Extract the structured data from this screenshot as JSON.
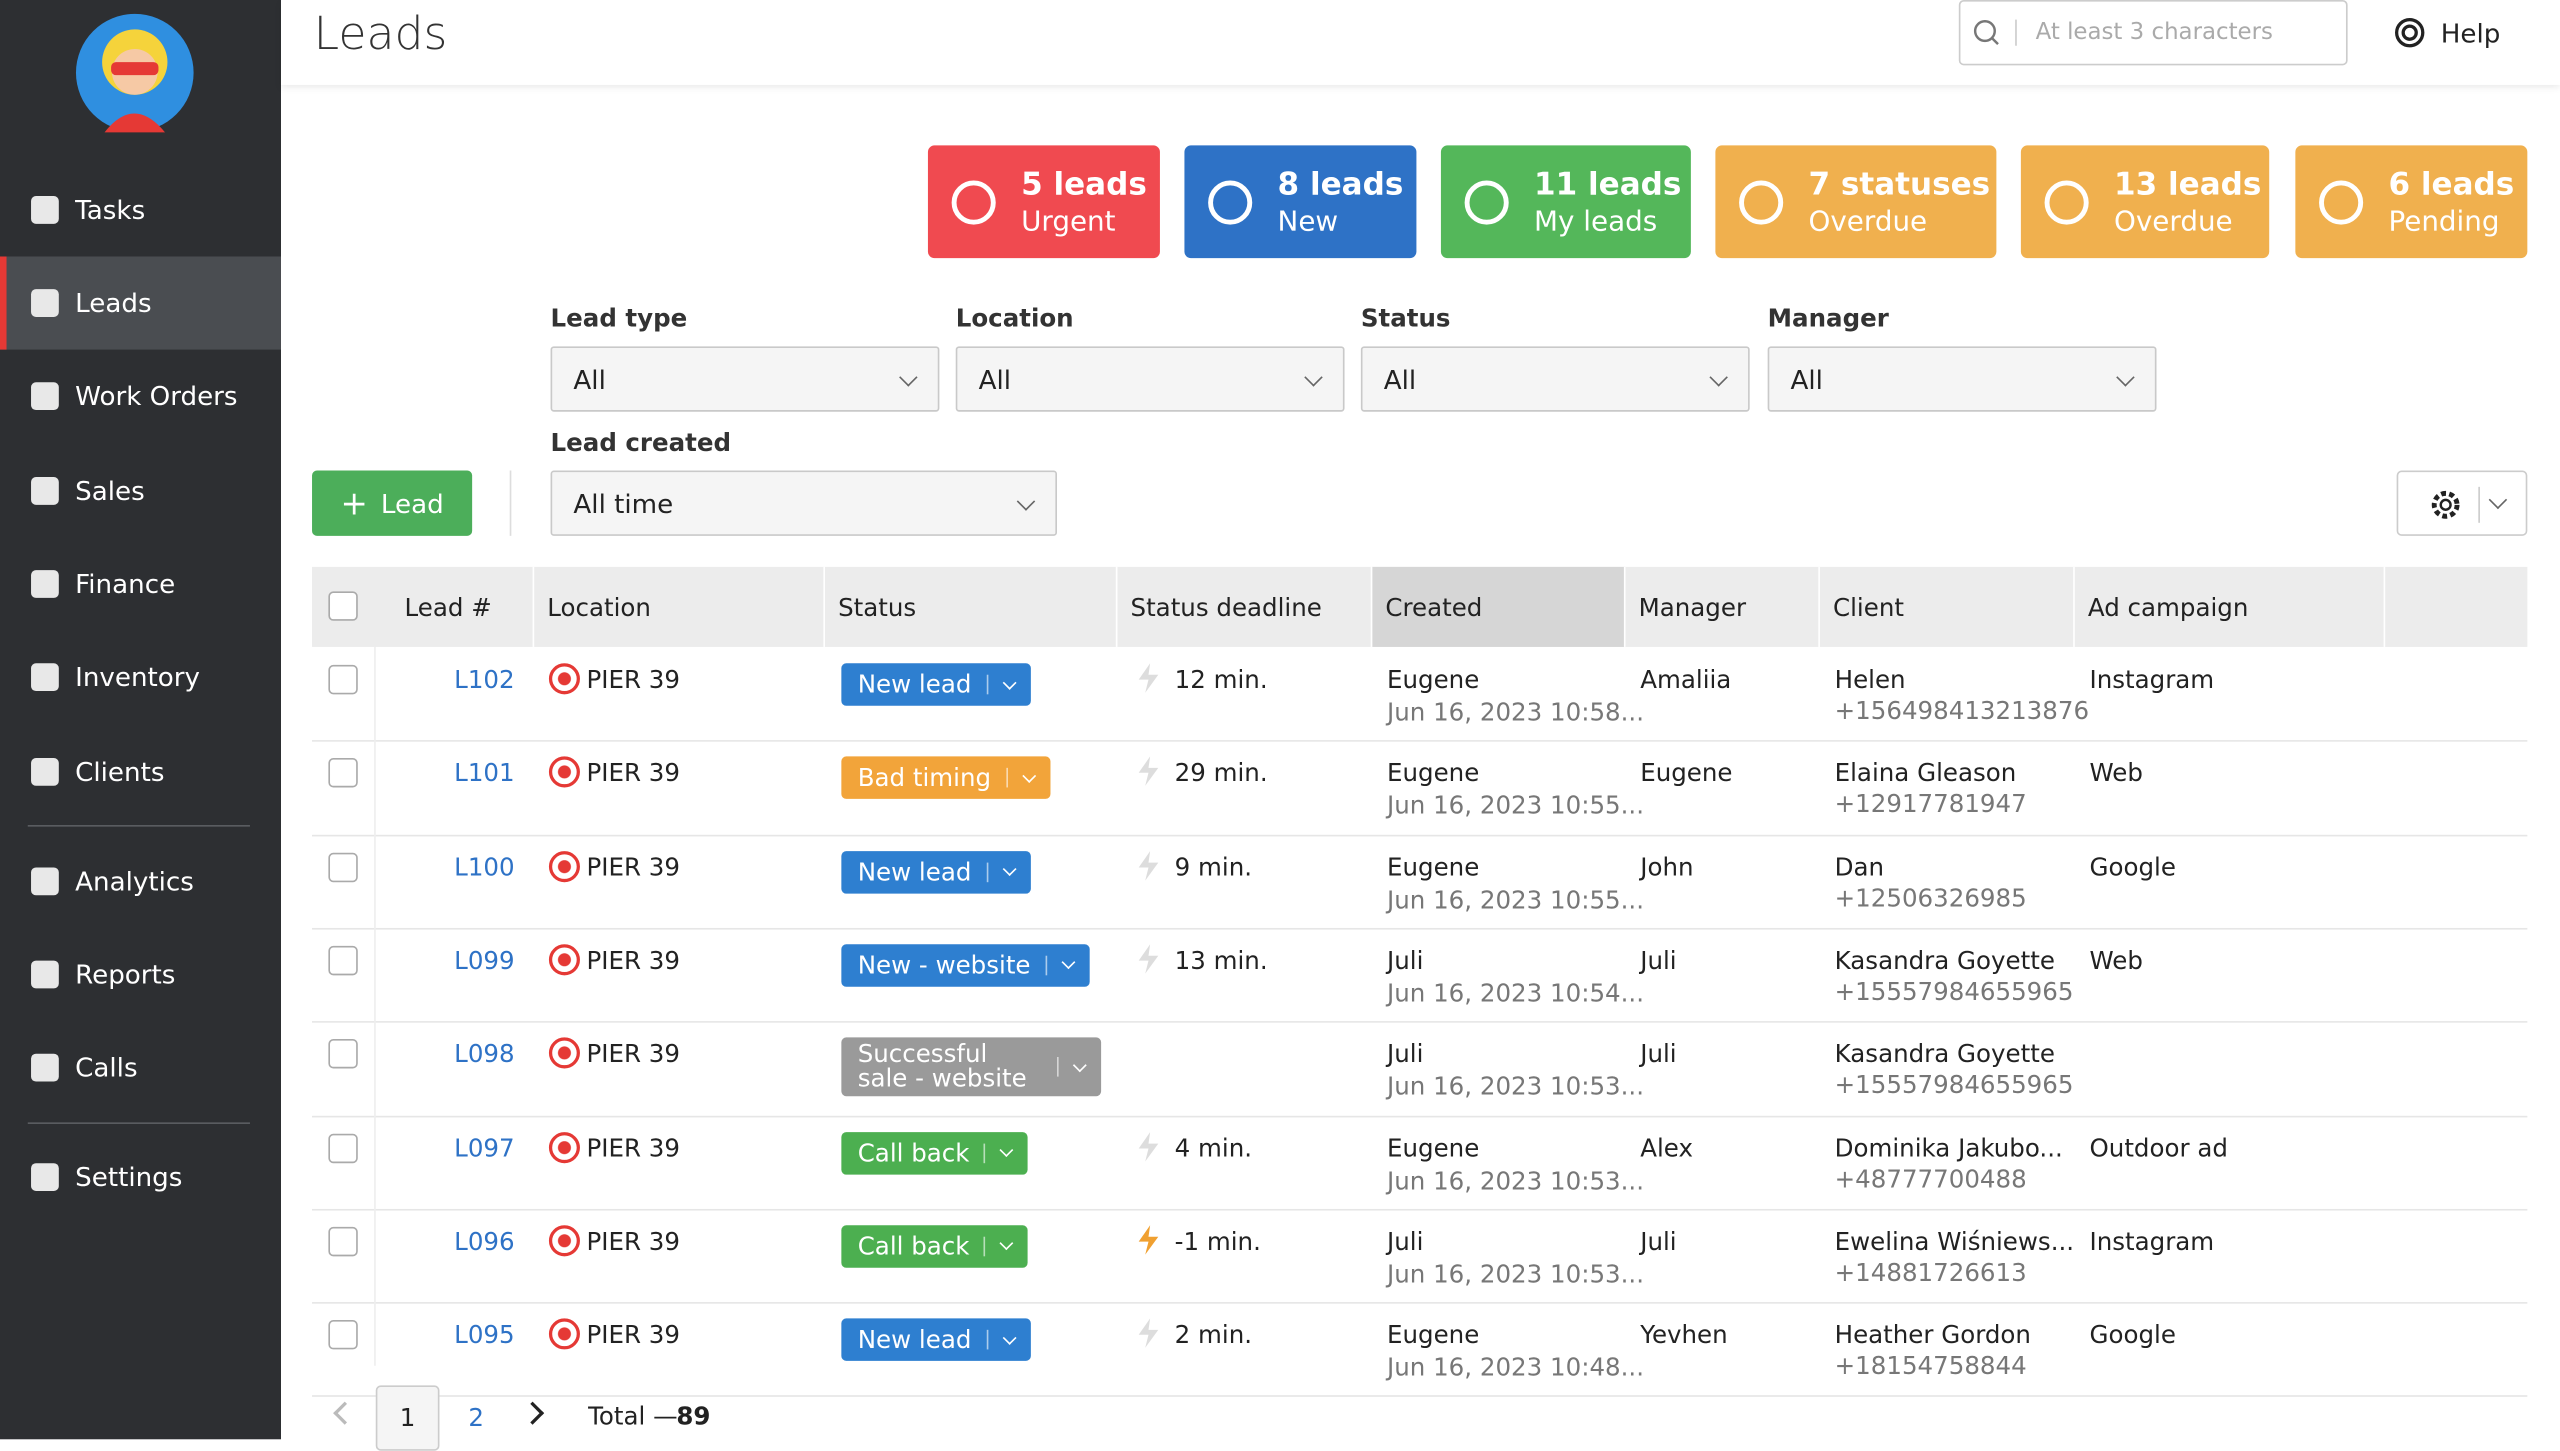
{
  "header": {
    "title": "Leads",
    "search_placeholder": "At least 3 characters",
    "help": "Help"
  },
  "sidebar": {
    "items": [
      "Tasks",
      "Leads",
      "Work Orders",
      "Sales",
      "Finance",
      "Inventory",
      "Clients",
      "Analytics",
      "Reports",
      "Calls",
      "Settings"
    ],
    "active": 1
  },
  "cards": [
    {
      "count": "5 leads",
      "label": "Urgent",
      "color": "#f04a50"
    },
    {
      "count": "8 leads",
      "label": "New",
      "color": "#2e72c6"
    },
    {
      "count": "11 leads",
      "label": "My leads",
      "color": "#54b75a"
    },
    {
      "count": "7 statuses",
      "label": "Overdue",
      "color": "#f0b04e"
    },
    {
      "count": "13 leads",
      "label": "Overdue",
      "color": "#f0b04e"
    },
    {
      "count": "6 leads",
      "label": "Pending",
      "color": "#f0b04e"
    }
  ],
  "filters": [
    {
      "label": "Lead type",
      "value": "All"
    },
    {
      "label": "Location",
      "value": "All"
    },
    {
      "label": "Status",
      "value": "All"
    },
    {
      "label": "Manager",
      "value": "All"
    },
    {
      "label": "Lead created",
      "value": "All time"
    }
  ],
  "add_button": "Lead",
  "table": {
    "columns": [
      "Lead #",
      "Location",
      "Status",
      "Status deadline",
      "Created",
      "Manager",
      "Client",
      "Ad campaign"
    ],
    "rows": [
      {
        "id": "L102",
        "location": "PIER 39",
        "status": "New lead",
        "status_color": "#2e7fd0",
        "deadline": "12 min.",
        "creator": "Eugene",
        "created": "Jun 16, 2023 10:58...",
        "manager": "Amaliia",
        "client": "Helen",
        "phone": "+156498413213876",
        "campaign": "Instagram"
      },
      {
        "id": "L101",
        "location": "PIER 39",
        "status": "Bad timing",
        "status_color": "#f2a43a",
        "deadline": "29 min.",
        "creator": "Eugene",
        "created": "Jun 16, 2023 10:55...",
        "manager": "Eugene",
        "client": "Elaina Gleason",
        "phone": "+12917781947",
        "campaign": "Web"
      },
      {
        "id": "L100",
        "location": "PIER 39",
        "status": "New lead",
        "status_color": "#2e7fd0",
        "deadline": "9 min.",
        "creator": "Eugene",
        "created": "Jun 16, 2023 10:55...",
        "manager": "John",
        "client": "Dan",
        "phone": "+12506326985",
        "campaign": "Google"
      },
      {
        "id": "L099",
        "location": "PIER 39",
        "status": "New - website",
        "status_color": "#2e7fd0",
        "deadline": "13 min.",
        "creator": "Juli",
        "created": "Jun 16, 2023 10:54...",
        "manager": "Juli",
        "client": "Kasandra Goyette",
        "phone": "+15557984655965",
        "campaign": "Web"
      },
      {
        "id": "L098",
        "location": "PIER 39",
        "status": "Successful sale - website",
        "status_color": "#9a9a9a",
        "deadline": null,
        "creator": "Juli",
        "created": "Jun 16, 2023 10:53...",
        "manager": "Juli",
        "client": "Kasandra Goyette",
        "phone": "+15557984655965",
        "campaign": null
      },
      {
        "id": "L097",
        "location": "PIER 39",
        "status": "Call back",
        "status_color": "#4caf50",
        "deadline": "4 min.",
        "creator": "Eugene",
        "created": "Jun 16, 2023 10:53...",
        "manager": "Alex",
        "client": "Dominika Jakubo...",
        "phone": "+48777700488",
        "campaign": "Outdoor ad"
      },
      {
        "id": "L096",
        "location": "PIER 39",
        "status": "Call back",
        "status_color": "#4caf50",
        "deadline": "-1 min.",
        "creator": "Juli",
        "created": "Jun 16, 2023 10:53...",
        "manager": "Juli",
        "client": "Ewelina Wiśniews...",
        "phone": "+14881726613",
        "campaign": "Instagram"
      },
      {
        "id": "L095",
        "location": "PIER 39",
        "status": "New lead",
        "status_color": "#2e7fd0",
        "deadline": "2 min.",
        "creator": "Eugene",
        "created": "Jun 16, 2023 10:48...",
        "manager": "Yevhen",
        "client": "Heather Gordon",
        "phone": "+18154758844",
        "campaign": "Google"
      }
    ]
  },
  "pagination": {
    "pages": [
      1,
      2
    ],
    "total_label": "Total —",
    "total": 89
  }
}
